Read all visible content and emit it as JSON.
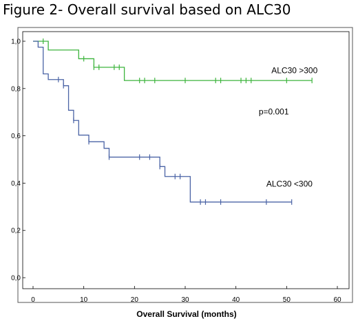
{
  "figure_title": "Figure 2- Overall survival based on ALC30",
  "chart_data": {
    "type": "line",
    "title": "Figure 2- Overall survival based on ALC30",
    "xlabel": "Overall Survival (months)",
    "ylabel": "",
    "xlim": [
      0,
      60
    ],
    "ylim": [
      0.0,
      1.0
    ],
    "x_ticks": [
      0,
      10,
      20,
      30,
      40,
      50,
      60
    ],
    "y_ticks": [
      0.0,
      0.2,
      0.4,
      0.6,
      0.8,
      1.0
    ],
    "x_tick_labels": [
      "0",
      "10",
      "20",
      "30",
      "40",
      "50",
      "60"
    ],
    "y_tick_labels": [
      "0,0",
      "0,2",
      "0,4",
      "0,6",
      "0,8",
      "1,0"
    ],
    "grid": false,
    "annotations": [
      {
        "text": "p=0.001",
        "x": 44.5,
        "y": 0.69
      }
    ],
    "series": [
      {
        "name": "ALC30 >300",
        "color": "#3cb43c",
        "label_at": {
          "x": 47,
          "y": 0.865
        },
        "steps": [
          [
            0,
            1.0
          ],
          [
            3,
            0.963
          ],
          [
            9,
            0.926
          ],
          [
            12,
            0.89
          ],
          [
            18,
            0.834
          ],
          [
            55,
            0.834
          ]
        ],
        "censored": [
          [
            2,
            1.0
          ],
          [
            10,
            0.926
          ],
          [
            12,
            0.89
          ],
          [
            13,
            0.89
          ],
          [
            16,
            0.89
          ],
          [
            17,
            0.89
          ],
          [
            21,
            0.834
          ],
          [
            22,
            0.834
          ],
          [
            24,
            0.834
          ],
          [
            30,
            0.834
          ],
          [
            36,
            0.834
          ],
          [
            37,
            0.834
          ],
          [
            41,
            0.834
          ],
          [
            42,
            0.834
          ],
          [
            43,
            0.834
          ],
          [
            50,
            0.834
          ],
          [
            55,
            0.834
          ]
        ]
      },
      {
        "name": "ALC30 <300",
        "color": "#4a63a5",
        "label_at": {
          "x": 46,
          "y": 0.385
        },
        "steps": [
          [
            0,
            1.0
          ],
          [
            1,
            0.975
          ],
          [
            2,
            0.862
          ],
          [
            3,
            0.838
          ],
          [
            6,
            0.812
          ],
          [
            7,
            0.708
          ],
          [
            8,
            0.665
          ],
          [
            9,
            0.603
          ],
          [
            11,
            0.575
          ],
          [
            14,
            0.547
          ],
          [
            15,
            0.51
          ],
          [
            25,
            0.47
          ],
          [
            26,
            0.428
          ],
          [
            31,
            0.32
          ],
          [
            51,
            0.32
          ]
        ],
        "censored": [
          [
            5,
            0.838
          ],
          [
            6,
            0.812
          ],
          [
            8,
            0.665
          ],
          [
            11,
            0.575
          ],
          [
            15,
            0.51
          ],
          [
            21,
            0.51
          ],
          [
            23,
            0.51
          ],
          [
            25,
            0.47
          ],
          [
            28,
            0.428
          ],
          [
            29,
            0.428
          ],
          [
            33,
            0.32
          ],
          [
            34,
            0.32
          ],
          [
            37,
            0.32
          ],
          [
            46,
            0.32
          ],
          [
            51,
            0.32
          ]
        ]
      }
    ]
  }
}
